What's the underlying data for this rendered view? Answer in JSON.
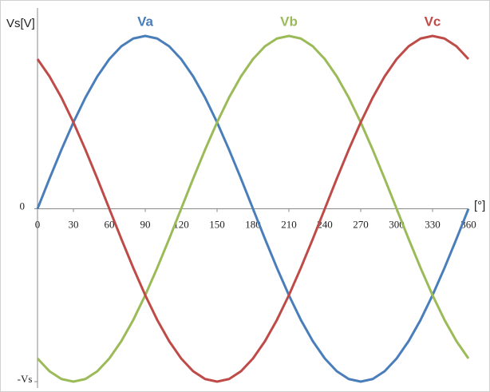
{
  "chart_data": {
    "type": "line",
    "ylabel": "Vs[V]",
    "xlabel": "[°]",
    "x": [
      0,
      10,
      20,
      30,
      40,
      50,
      60,
      70,
      80,
      90,
      100,
      110,
      120,
      130,
      140,
      150,
      160,
      170,
      180,
      190,
      200,
      210,
      220,
      230,
      240,
      250,
      260,
      270,
      280,
      290,
      300,
      310,
      320,
      330,
      340,
      350,
      360
    ],
    "xlim": [
      0,
      360
    ],
    "xticks": [
      0,
      30,
      60,
      90,
      120,
      150,
      180,
      210,
      240,
      270,
      300,
      330,
      360
    ],
    "ylim": [
      -1,
      1
    ],
    "yticks": [
      {
        "value": -1,
        "label": "-Vs"
      },
      0
    ],
    "series": [
      {
        "name": "Va",
        "color": "#4a7ebb",
        "values": [
          0,
          0.174,
          0.342,
          0.5,
          0.643,
          0.766,
          0.866,
          0.94,
          0.985,
          1,
          0.985,
          0.94,
          0.866,
          0.766,
          0.643,
          0.5,
          0.342,
          0.174,
          0,
          -0.174,
          -0.342,
          -0.5,
          -0.643,
          -0.766,
          -0.866,
          -0.94,
          -0.985,
          -1,
          -0.985,
          -0.94,
          -0.866,
          -0.766,
          -0.643,
          -0.5,
          -0.342,
          -0.174,
          0
        ]
      },
      {
        "name": "Vb",
        "color": "#9bbb59",
        "values": [
          -0.866,
          -0.94,
          -0.985,
          -1,
          -0.985,
          -0.94,
          -0.866,
          -0.766,
          -0.643,
          -0.5,
          -0.342,
          -0.174,
          0,
          0.174,
          0.342,
          0.5,
          0.643,
          0.766,
          0.866,
          0.94,
          0.985,
          1,
          0.985,
          0.94,
          0.866,
          0.766,
          0.643,
          0.5,
          0.342,
          0.174,
          0,
          -0.174,
          -0.342,
          -0.5,
          -0.643,
          -0.766,
          -0.866
        ]
      },
      {
        "name": "Vc",
        "color": "#be4b48",
        "values": [
          0.866,
          0.766,
          0.643,
          0.5,
          0.342,
          0.174,
          0,
          -0.174,
          -0.342,
          -0.5,
          -0.643,
          -0.766,
          -0.866,
          -0.94,
          -0.985,
          -1,
          -0.985,
          -0.94,
          -0.866,
          -0.766,
          -0.643,
          -0.5,
          -0.342,
          -0.174,
          0,
          0.174,
          0.342,
          0.5,
          0.643,
          0.766,
          0.866,
          0.94,
          0.985,
          1,
          0.985,
          0.94,
          0.866
        ]
      }
    ]
  }
}
